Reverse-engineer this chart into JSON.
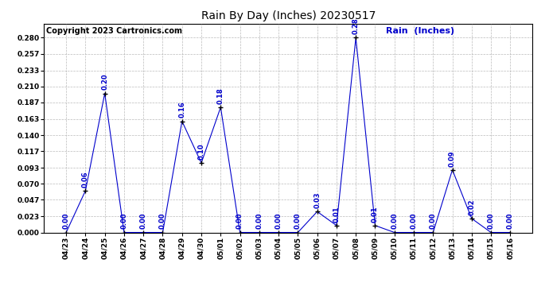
{
  "title": "Rain By Day (Inches) 20230517",
  "copyright_text": "Copyright 2023 Cartronics.com",
  "legend_label": "Rain  (Inches)",
  "background_color": "#ffffff",
  "line_color": "#0000cc",
  "annotation_color": "#0000cc",
  "grid_color": "#aaaaaa",
  "dates": [
    "04/23",
    "04/24",
    "04/25",
    "04/26",
    "04/27",
    "04/28",
    "04/29",
    "04/30",
    "05/01",
    "05/02",
    "05/03",
    "05/04",
    "05/05",
    "05/06",
    "05/07",
    "05/08",
    "05/09",
    "05/10",
    "05/11",
    "05/12",
    "05/13",
    "05/14",
    "05/15",
    "05/16"
  ],
  "values": [
    0.0,
    0.06,
    0.2,
    0.0,
    0.0,
    0.0,
    0.16,
    0.1,
    0.18,
    0.0,
    0.0,
    0.0,
    0.0,
    0.03,
    0.01,
    0.28,
    0.01,
    0.0,
    0.0,
    0.0,
    0.09,
    0.02,
    0.0,
    0.0
  ],
  "ylim": [
    0.0,
    0.3
  ],
  "yticks": [
    0.0,
    0.023,
    0.047,
    0.07,
    0.093,
    0.117,
    0.14,
    0.163,
    0.187,
    0.21,
    0.233,
    0.257,
    0.28
  ],
  "title_fontsize": 10,
  "annotation_fontsize": 6,
  "legend_fontsize": 8,
  "copyright_fontsize": 7,
  "tick_fontsize": 6.5,
  "ytick_fontsize": 6.5
}
